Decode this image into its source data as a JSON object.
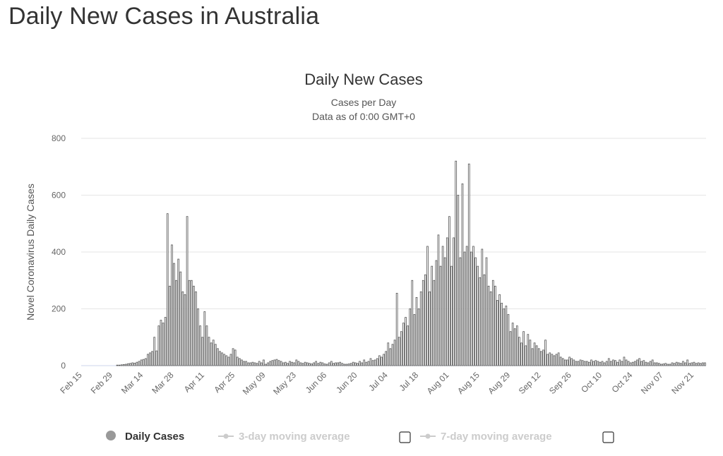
{
  "page_title": "Daily New Cases in Australia",
  "chart_data": {
    "type": "bar",
    "title": "Daily New Cases",
    "subtitle": "Cases per Day",
    "subtitle2": "Data as of 0:00 GMT+0",
    "ylabel": "Novel Coronavirus Daily Cases",
    "xlabel": "",
    "ylim": [
      0,
      800
    ],
    "yticks": [
      0,
      200,
      400,
      600,
      800
    ],
    "grid": true,
    "x_tick_labels": [
      "Feb 15",
      "Feb 29",
      "Mar 14",
      "Mar 28",
      "Apr 11",
      "Apr 25",
      "May 09",
      "May 23",
      "Jun 06",
      "Jun 20",
      "Jul 04",
      "Jul 18",
      "Aug 01",
      "Aug 15",
      "Aug 29",
      "Sep 12",
      "Sep 26",
      "Oct 10",
      "Oct 24",
      "Nov 07",
      "Nov 21"
    ],
    "x_start": "Feb 15",
    "series": [
      {
        "name": "Daily Cases",
        "color": "#555555",
        "values": [
          0,
          0,
          0,
          0,
          0,
          0,
          0,
          0,
          0,
          0,
          0,
          0,
          0,
          0,
          0,
          0,
          2,
          2,
          3,
          4,
          5,
          7,
          8,
          10,
          9,
          12,
          15,
          20,
          22,
          25,
          40,
          45,
          50,
          100,
          52,
          140,
          160,
          150,
          170,
          535,
          280,
          425,
          360,
          300,
          375,
          330,
          260,
          250,
          525,
          300,
          300,
          280,
          260,
          200,
          140,
          100,
          190,
          140,
          100,
          80,
          90,
          75,
          60,
          50,
          45,
          40,
          35,
          30,
          40,
          60,
          55,
          30,
          25,
          20,
          15,
          15,
          10,
          10,
          12,
          10,
          8,
          15,
          10,
          20,
          5,
          10,
          15,
          18,
          20,
          22,
          18,
          15,
          10,
          12,
          8,
          15,
          12,
          10,
          20,
          15,
          10,
          8,
          12,
          10,
          8,
          6,
          10,
          15,
          8,
          12,
          10,
          6,
          5,
          10,
          15,
          8,
          10,
          10,
          12,
          8,
          5,
          5,
          6,
          8,
          12,
          10,
          8,
          15,
          10,
          20,
          12,
          15,
          25,
          18,
          20,
          25,
          35,
          30,
          40,
          50,
          80,
          60,
          75,
          90,
          255,
          100,
          120,
          150,
          170,
          140,
          200,
          300,
          180,
          240,
          200,
          260,
          300,
          320,
          420,
          260,
          350,
          300,
          370,
          460,
          350,
          420,
          380,
          450,
          525,
          350,
          450,
          720,
          600,
          380,
          640,
          400,
          420,
          710,
          400,
          420,
          380,
          350,
          310,
          410,
          320,
          380,
          280,
          260,
          300,
          280,
          230,
          250,
          220,
          200,
          210,
          180,
          120,
          150,
          130,
          140,
          100,
          80,
          120,
          70,
          110,
          90,
          60,
          80,
          70,
          60,
          50,
          55,
          90,
          40,
          45,
          40,
          35,
          40,
          45,
          30,
          25,
          20,
          20,
          30,
          25,
          20,
          15,
          15,
          20,
          18,
          15,
          15,
          12,
          20,
          15,
          18,
          15,
          12,
          15,
          10,
          15,
          25,
          15,
          20,
          18,
          12,
          20,
          15,
          30,
          20,
          15,
          10,
          12,
          15,
          20,
          25,
          15,
          18,
          12,
          10,
          15,
          20,
          10,
          10,
          8,
          5,
          6,
          8,
          5,
          5,
          10,
          8,
          12,
          10,
          8,
          15,
          10,
          20,
          8,
          10,
          12,
          8,
          10,
          8,
          10,
          10
        ]
      }
    ],
    "legend": [
      {
        "label": "Daily Cases",
        "active": true
      },
      {
        "label": "3-day moving average",
        "active": false
      },
      {
        "label": "7-day moving average",
        "active": false
      }
    ]
  }
}
